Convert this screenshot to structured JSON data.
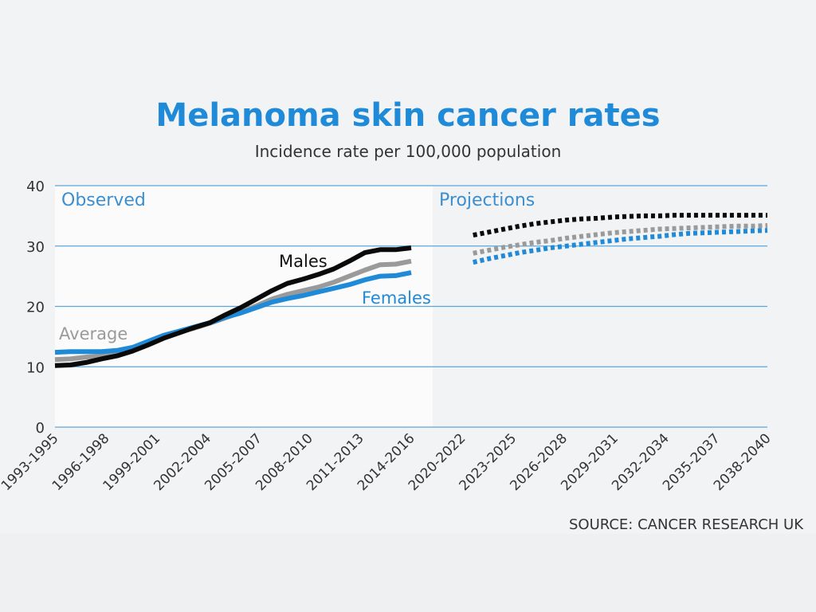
{
  "chart_data": {
    "type": "line",
    "title": "Melanoma skin cancer rates",
    "subtitle": "Incidence rate per 100,000 population",
    "source": "SOURCE: CANCER RESEARCH UK",
    "ylim": [
      0,
      40
    ],
    "yticks": [
      0,
      10,
      20,
      30,
      40
    ],
    "region_labels": {
      "observed": "Observed",
      "projections": "Projections"
    },
    "categories": [
      "1993-1995",
      "1996-1998",
      "1999-2001",
      "2002-2004",
      "2005-2007",
      "2008-2010",
      "2011-2013",
      "2014-2016",
      "2020-2022",
      "2023-2025",
      "2026-2028",
      "2029-2031",
      "2032-2034",
      "2035-2037",
      "2038-2040"
    ],
    "observed_x": [
      1994,
      1995,
      1996,
      1997,
      1998,
      1999,
      2000,
      2001,
      2002,
      2003,
      2004,
      2005,
      2006,
      2007,
      2008,
      2009,
      2010,
      2011,
      2012,
      2013,
      2014,
      2015,
      2016,
      2017
    ],
    "projected_x": [
      2021,
      2022,
      2023,
      2024,
      2025,
      2026,
      2027,
      2028,
      2029,
      2030,
      2031,
      2032,
      2033,
      2034,
      2035,
      2036,
      2037,
      2038,
      2039,
      2040
    ],
    "series": [
      {
        "name": "Average",
        "label": "Average",
        "color": "#9a9a9a",
        "observed": [
          11.2,
          11.3,
          11.6,
          11.8,
          12.2,
          12.9,
          13.9,
          14.9,
          15.8,
          16.4,
          17.2,
          18.1,
          19.0,
          20.1,
          21.2,
          22.0,
          22.6,
          23.2,
          24.0,
          25.0,
          26.0,
          26.9,
          27.0,
          27.5
        ],
        "projected": [
          28.8,
          29.3,
          29.8,
          30.2,
          30.6,
          30.9,
          31.3,
          31.6,
          31.9,
          32.2,
          32.4,
          32.6,
          32.8,
          32.9,
          33.0,
          33.1,
          33.2,
          33.3,
          33.3,
          33.4
        ]
      },
      {
        "name": "Females",
        "label": "Females",
        "color": "#1f8ad8",
        "observed": [
          12.4,
          12.5,
          12.5,
          12.5,
          12.7,
          13.2,
          14.2,
          15.2,
          15.9,
          16.6,
          17.3,
          18.2,
          18.9,
          19.8,
          20.7,
          21.3,
          21.8,
          22.4,
          23.0,
          23.6,
          24.4,
          25.0,
          25.1,
          25.6
        ],
        "projected": [
          27.3,
          27.9,
          28.4,
          28.9,
          29.3,
          29.7,
          30.0,
          30.3,
          30.6,
          30.9,
          31.2,
          31.4,
          31.6,
          31.9,
          32.1,
          32.2,
          32.3,
          32.4,
          32.5,
          32.6
        ]
      },
      {
        "name": "Males",
        "label": "Males",
        "color": "#0a0a0a",
        "observed": [
          10.2,
          10.3,
          10.7,
          11.3,
          11.8,
          12.6,
          13.6,
          14.7,
          15.6,
          16.5,
          17.3,
          18.6,
          19.8,
          21.2,
          22.6,
          23.8,
          24.5,
          25.3,
          26.2,
          27.5,
          28.9,
          29.4,
          29.4,
          29.7
        ],
        "projected": [
          31.8,
          32.3,
          32.8,
          33.3,
          33.7,
          34.0,
          34.3,
          34.5,
          34.6,
          34.8,
          34.9,
          35.0,
          35.0,
          35.1,
          35.1,
          35.1,
          35.1,
          35.1,
          35.1,
          35.1
        ]
      }
    ]
  }
}
